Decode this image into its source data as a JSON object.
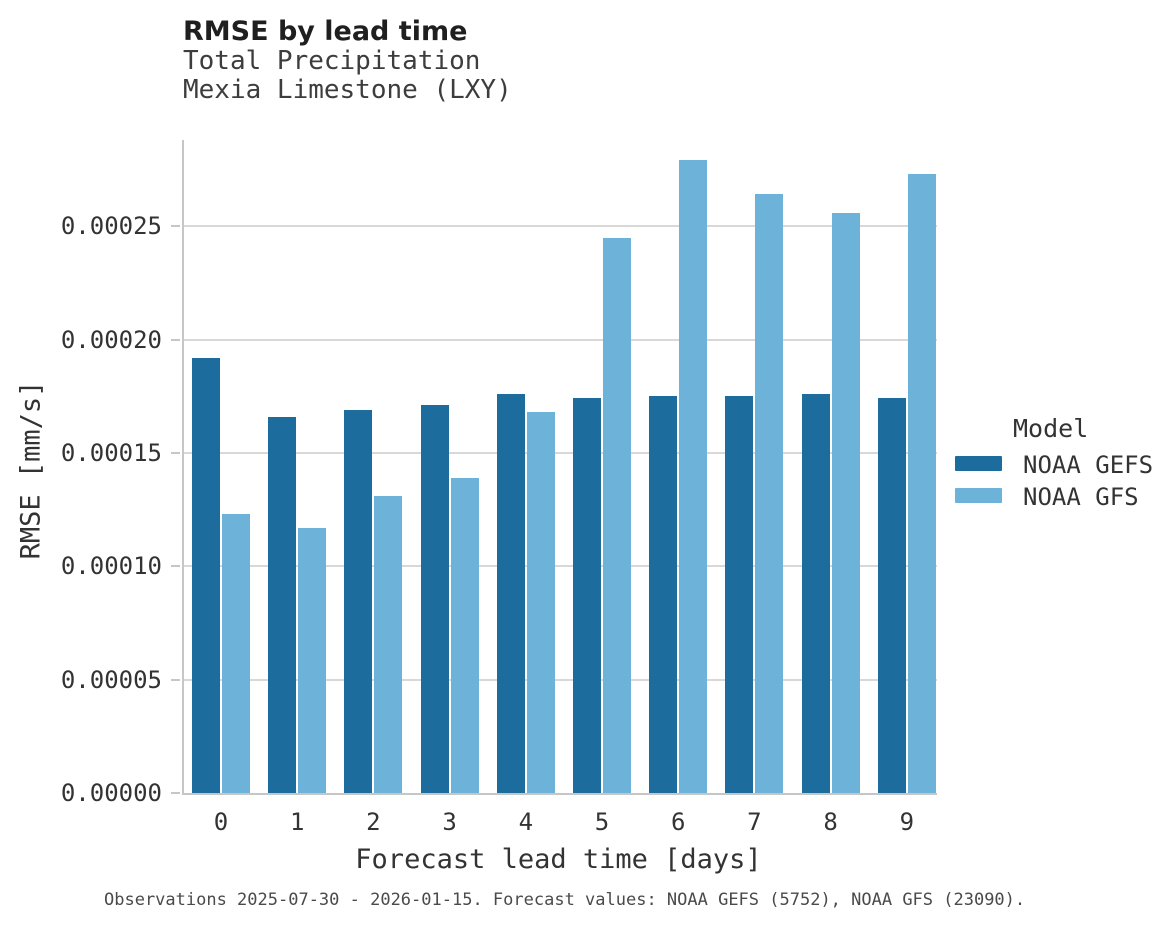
{
  "title": "RMSE by lead time",
  "subtitle_line1": "Total Precipitation",
  "subtitle_line2": "Mexia Limestone (LXY)",
  "footer": "Observations 2025-07-30 - 2026-01-15. Forecast values: NOAA GEFS (5752), NOAA GFS (23090).",
  "legend": {
    "title": "Model",
    "entries": [
      {
        "label": "NOAA GEFS",
        "color": "#1c6d9e"
      },
      {
        "label": "NOAA GFS",
        "color": "#6cb2d9"
      }
    ]
  },
  "colors": {
    "gefs_bar": "#1c6d9e",
    "gfs_bar": "#6cb2d9",
    "gridline": "#d8d8d8",
    "spine": "#c6c6c6",
    "title_text": "#1f1f1f",
    "body_text": "#333333",
    "footer_text": "#4a4a4a",
    "background": "#ffffff"
  },
  "chart_data": {
    "type": "bar",
    "title": "RMSE by lead time",
    "subtitle": [
      "Total Precipitation",
      "Mexia Limestone (LXY)"
    ],
    "categories": [
      "0",
      "1",
      "2",
      "3",
      "4",
      "5",
      "6",
      "7",
      "8",
      "9"
    ],
    "series": [
      {
        "name": "NOAA GEFS",
        "color": "#1c6d9e",
        "values": [
          0.000192,
          0.000166,
          0.000169,
          0.000171,
          0.000176,
          0.000174,
          0.000175,
          0.000175,
          0.000176,
          0.000174
        ]
      },
      {
        "name": "NOAA GFS",
        "color": "#6cb2d9",
        "values": [
          0.000123,
          0.000117,
          0.000131,
          0.000139,
          0.000168,
          0.000245,
          0.000279,
          0.000264,
          0.000256,
          0.000273
        ]
      }
    ],
    "xlabel": "Forecast lead time [days]",
    "ylabel": "RMSE [mm/s]",
    "ylim": [
      0,
      0.000288
    ],
    "yticks": [
      0.0,
      5e-05,
      0.0001,
      0.00015,
      0.0002,
      0.00025
    ],
    "ytick_labels": [
      "0.00000",
      "0.00005",
      "0.00010",
      "0.00015",
      "0.00020",
      "0.00025"
    ],
    "grid": true,
    "legend_title": "Model",
    "legend_position": "center-right"
  }
}
